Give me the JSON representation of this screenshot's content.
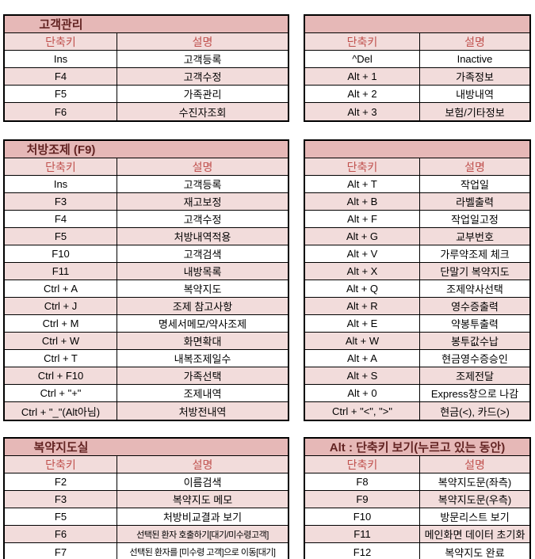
{
  "colors": {
    "title_bg": "#e6b8b7",
    "title_text": "#632423",
    "header_bg": "#f2dcdb",
    "header_text": "#c0504d",
    "row_alt_bg": "#f2dcdb",
    "border": "#000000",
    "cell_text": "#000000"
  },
  "headers": {
    "shortcut": "단축키",
    "description": "설명"
  },
  "sections": [
    {
      "title": "고객관리",
      "rows": [
        {
          "key": "Ins",
          "desc": "고객등록"
        },
        {
          "key": "F4",
          "desc": "고객수정"
        },
        {
          "key": "F5",
          "desc": "가족관리"
        },
        {
          "key": "F6",
          "desc": "수진자조회"
        }
      ]
    },
    {
      "title": "",
      "rows": [
        {
          "key": "^Del",
          "desc": "Inactive"
        },
        {
          "key": "Alt + 1",
          "desc": "가족정보"
        },
        {
          "key": "Alt + 2",
          "desc": "내방내역"
        },
        {
          "key": "Alt + 3",
          "desc": "보험/기타정보"
        }
      ]
    },
    {
      "title": "처방조제 (F9)",
      "rows": [
        {
          "key": "Ins",
          "desc": "고객등록"
        },
        {
          "key": "F3",
          "desc": "재고보정"
        },
        {
          "key": "F4",
          "desc": "고객수정"
        },
        {
          "key": "F5",
          "desc": "처방내역적용"
        },
        {
          "key": "F10",
          "desc": "고객검색"
        },
        {
          "key": "F11",
          "desc": "내방목록"
        },
        {
          "key": "Ctrl + A",
          "desc": "복약지도"
        },
        {
          "key": "Ctrl + J",
          "desc": "조제 참고사항"
        },
        {
          "key": "Ctrl + M",
          "desc": "명세서메모/약사조제"
        },
        {
          "key": "Ctrl + W",
          "desc": "화면확대"
        },
        {
          "key": "Ctrl + T",
          "desc": "내복조제일수"
        },
        {
          "key": "Ctrl + F10",
          "desc": "가족선택"
        },
        {
          "key": "Ctrl + \"+\"",
          "desc": "조제내역"
        },
        {
          "key": "Ctrl + \"_\"(Alt아님)",
          "desc": "처방전내역"
        }
      ]
    },
    {
      "title": "",
      "rows": [
        {
          "key": "Alt + T",
          "desc": "작업일"
        },
        {
          "key": "Alt + B",
          "desc": "라벨출력"
        },
        {
          "key": "Alt + F",
          "desc": "작업일고정"
        },
        {
          "key": "Alt + G",
          "desc": "교부번호"
        },
        {
          "key": "Alt + V",
          "desc": "가루약조제 체크"
        },
        {
          "key": "Alt + X",
          "desc": "단말기 복약지도"
        },
        {
          "key": "Alt + Q",
          "desc": "조제약사선택"
        },
        {
          "key": "Alt + R",
          "desc": "영수증출력"
        },
        {
          "key": "Alt + E",
          "desc": "약봉투출력"
        },
        {
          "key": "Alt + W",
          "desc": "봉투값수납"
        },
        {
          "key": "Alt + A",
          "desc": "현금영수증승인"
        },
        {
          "key": "Alt + S",
          "desc": "조제전달"
        },
        {
          "key": "Alt + 0",
          "desc": "Express창으로 나감"
        },
        {
          "key": "Ctrl + \"<\", \">\"",
          "desc": "현금(<), 카드(>)"
        }
      ]
    },
    {
      "title": "복약지도실",
      "rows": [
        {
          "key": "F2",
          "desc": "이름검색"
        },
        {
          "key": "F3",
          "desc": "복약지도 메모"
        },
        {
          "key": "F5",
          "desc": "처방비교결과 보기"
        },
        {
          "key": "F6",
          "desc": "선택된 환자 호출하기[대기/미수령고객]"
        },
        {
          "key": "F7",
          "desc": "선택된 환자를 [미수령 고객]으로 이동[대기]"
        }
      ]
    },
    {
      "title": "Alt : 단축키 보기(누르고 있는 동안)",
      "rows": [
        {
          "key": "F8",
          "desc": "복약지도문(좌측)"
        },
        {
          "key": "F9",
          "desc": "복약지도문(우측)"
        },
        {
          "key": "F10",
          "desc": "방문리스트 보기"
        },
        {
          "key": "F11",
          "desc": "메인화면 데이터 초기화"
        },
        {
          "key": "F12",
          "desc": "복약지도 완료"
        }
      ]
    }
  ]
}
